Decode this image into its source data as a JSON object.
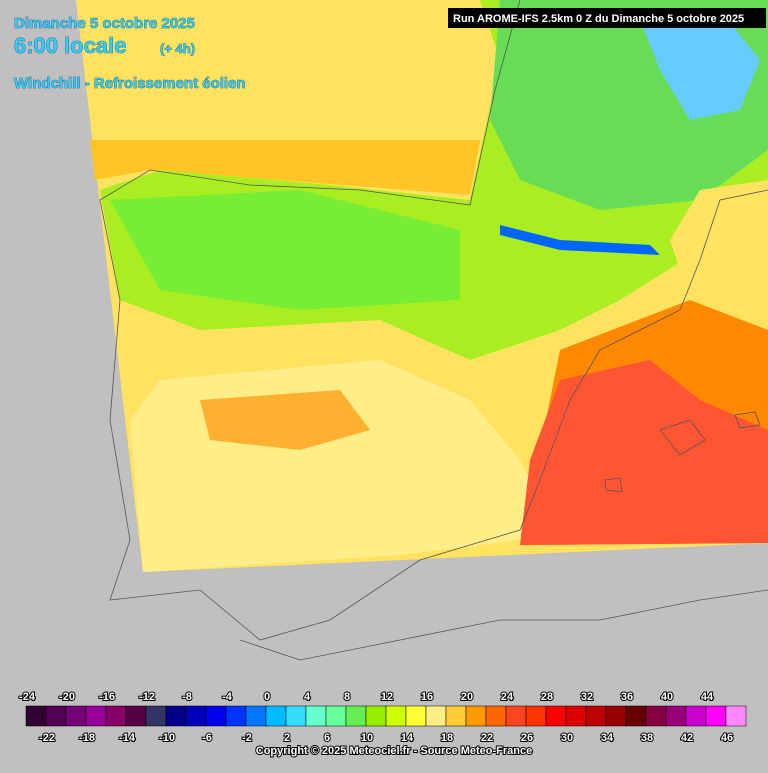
{
  "header": {
    "date": "Dimanche 5 octobre 2025",
    "time": "6:00 locale",
    "offset": "(+ 4h)",
    "parameter": "Windchill - Refroissement éolien",
    "run": "Run AROME-IFS 2.5km 0 Z du Dimanche 5 octobre 2025"
  },
  "legend": {
    "entries": [
      {
        "value": -24,
        "color": "#330033"
      },
      {
        "value": -22,
        "color": "#550055"
      },
      {
        "value": -20,
        "color": "#770077"
      },
      {
        "value": -18,
        "color": "#990099"
      },
      {
        "value": -16,
        "color": "#880066"
      },
      {
        "value": -14,
        "color": "#550044"
      },
      {
        "value": -12,
        "color": "#333366"
      },
      {
        "value": -10,
        "color": "#000088"
      },
      {
        "value": -8,
        "color": "#0000bb"
      },
      {
        "value": -6,
        "color": "#0000ee"
      },
      {
        "value": -4,
        "color": "#0033ff"
      },
      {
        "value": -2,
        "color": "#0077ff"
      },
      {
        "value": 0,
        "color": "#00bbff"
      },
      {
        "value": 2,
        "color": "#33ddff"
      },
      {
        "value": 4,
        "color": "#66ffcc"
      },
      {
        "value": 6,
        "color": "#66ff99"
      },
      {
        "value": 8,
        "color": "#66ee55"
      },
      {
        "value": 10,
        "color": "#99ee00"
      },
      {
        "value": 12,
        "color": "#ccff00"
      },
      {
        "value": 14,
        "color": "#ffff33"
      },
      {
        "value": 16,
        "color": "#ffee88"
      },
      {
        "value": 18,
        "color": "#ffcc33"
      },
      {
        "value": 20,
        "color": "#ff9900"
      },
      {
        "value": 22,
        "color": "#ff6600"
      },
      {
        "value": 24,
        "color": "#ff4422"
      },
      {
        "value": 26,
        "color": "#ff3300"
      },
      {
        "value": 28,
        "color": "#ff0000"
      },
      {
        "value": 30,
        "color": "#dd0000"
      },
      {
        "value": 32,
        "color": "#bb0000"
      },
      {
        "value": 34,
        "color": "#990000"
      },
      {
        "value": 36,
        "color": "#660000"
      },
      {
        "value": 38,
        "color": "#880044"
      },
      {
        "value": 40,
        "color": "#990077"
      },
      {
        "value": 42,
        "color": "#cc00cc"
      },
      {
        "value": 44,
        "color": "#ff00ff"
      },
      {
        "value": 46,
        "color": "#ff88ff"
      }
    ]
  },
  "footer": {
    "copyright": "Copyright © 2025 Meteociel.fr - Source Meteo-France"
  }
}
